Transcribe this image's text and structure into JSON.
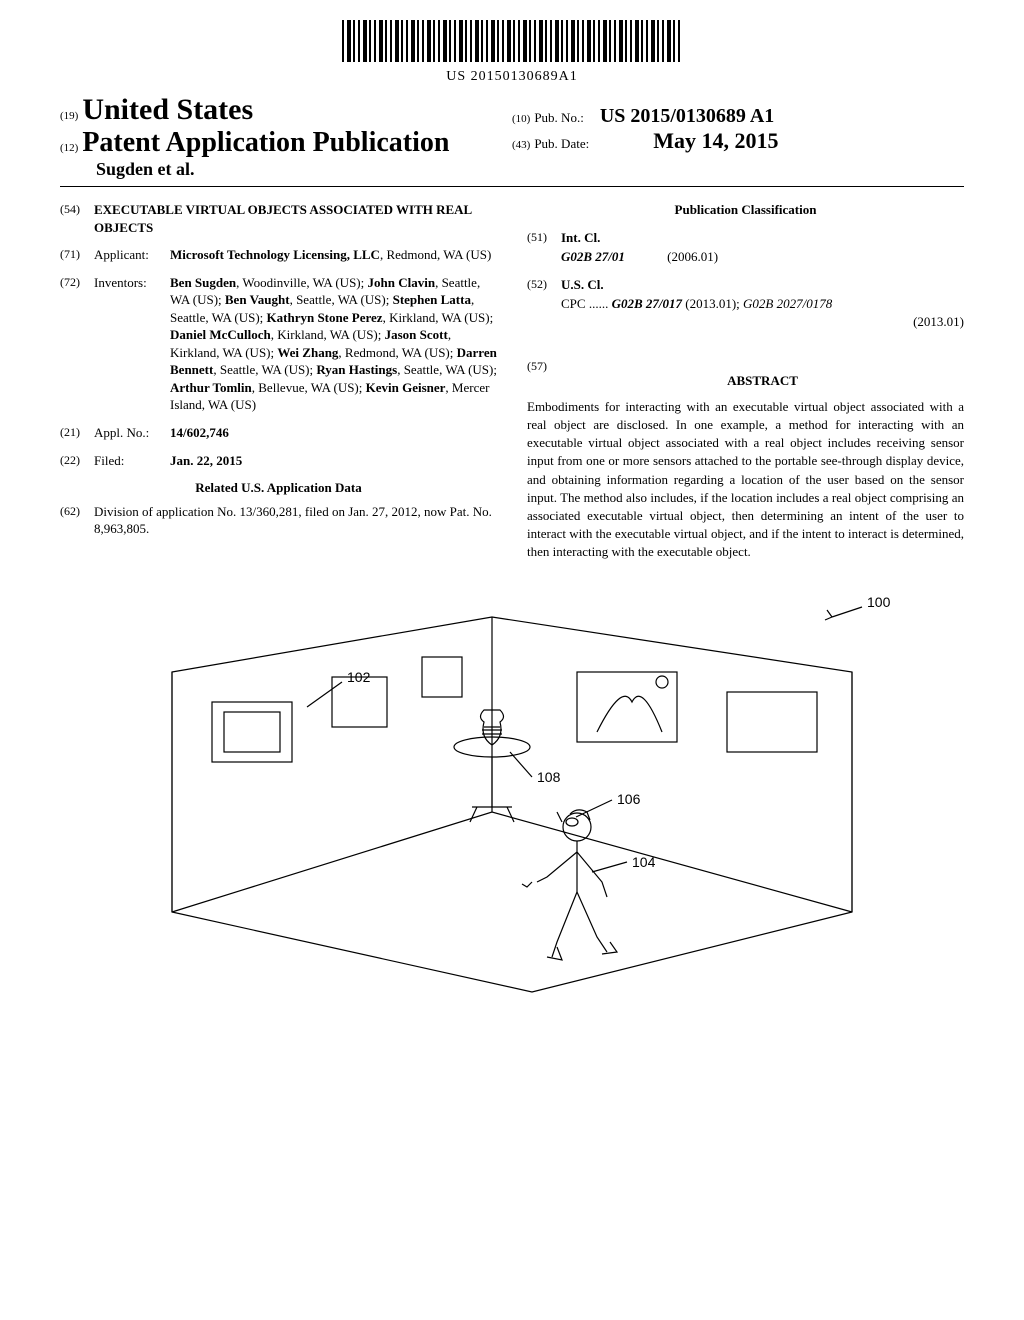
{
  "barcode_number": "US 20150130689A1",
  "header": {
    "code19": "(19)",
    "country": "United States",
    "code12": "(12)",
    "pub_type": "Patent Application Publication",
    "authors_line": "Sugden et al.",
    "code10": "(10)",
    "pub_no_label": "Pub. No.:",
    "pub_no": "US 2015/0130689 A1",
    "code43": "(43)",
    "pub_date_label": "Pub. Date:",
    "pub_date": "May 14, 2015"
  },
  "left": {
    "f54_num": "(54)",
    "f54_title": "EXECUTABLE VIRTUAL OBJECTS ASSOCIATED WITH REAL OBJECTS",
    "f71_num": "(71)",
    "f71_label": "Applicant:",
    "f71_body_bold": "Microsoft Technology Licensing, LLC",
    "f71_body_rest": ", Redmond, WA (US)",
    "f72_num": "(72)",
    "f72_label": "Inventors:",
    "inventors": [
      {
        "name": "Ben Sugden",
        "loc": ", Woodinville, WA (US); "
      },
      {
        "name": "John Clavin",
        "loc": ", Seattle, WA (US); "
      },
      {
        "name": "Ben Vaught",
        "loc": ", Seattle, WA (US); "
      },
      {
        "name": "Stephen Latta",
        "loc": ", Seattle, WA (US); "
      },
      {
        "name": "Kathryn Stone Perez",
        "loc": ", Kirkland, WA (US); "
      },
      {
        "name": "Daniel McCulloch",
        "loc": ", Kirkland, WA (US); "
      },
      {
        "name": "Jason Scott",
        "loc": ", Kirkland, WA (US); "
      },
      {
        "name": "Wei Zhang",
        "loc": ", Redmond, WA (US); "
      },
      {
        "name": "Darren Bennett",
        "loc": ", Seattle, WA (US); "
      },
      {
        "name": "Ryan Hastings",
        "loc": ", Seattle, WA (US); "
      },
      {
        "name": "Arthur Tomlin",
        "loc": ", Bellevue, WA (US); "
      },
      {
        "name": "Kevin Geisner",
        "loc": ", Mercer Island, WA (US)"
      }
    ],
    "f21_num": "(21)",
    "f21_label": "Appl. No.:",
    "f21_value": "14/602,746",
    "f22_num": "(22)",
    "f22_label": "Filed:",
    "f22_value": "Jan. 22, 2015",
    "related_heading": "Related U.S. Application Data",
    "f62_num": "(62)",
    "f62_text": "Division of application No. 13/360,281, filed on Jan. 27, 2012, now Pat. No. 8,963,805."
  },
  "right": {
    "class_heading": "Publication Classification",
    "f51_num": "(51)",
    "f51_label": "Int. Cl.",
    "f51_code": "G02B 27/01",
    "f51_year": "(2006.01)",
    "f52_num": "(52)",
    "f52_label": "U.S. Cl.",
    "f52_cpc": "CPC ......",
    "f52_code1": "G02B 27/017",
    "f52_year1": "(2013.01);",
    "f52_code2": "G02B 2027/0178",
    "f52_year2": "(2013.01)",
    "f57_num": "(57)",
    "abstract_heading": "ABSTRACT",
    "abstract_text": "Embodiments for interacting with an executable virtual object associated with a real object are disclosed. In one example, a method for interacting with an executable virtual object associated with a real object includes receiving sensor input from one or more sensors attached to the portable see-through display device, and obtaining information regarding a location of the user based on the sensor input. The method also includes, if the location includes a real object comprising an associated executable virtual object, then determining an intent of the user to interact with the executable virtual object, and if the intent to interact is determined, then interacting with the executable object."
  },
  "figure": {
    "ref_100": "100",
    "ref_102": "102",
    "ref_104": "104",
    "ref_106": "106",
    "ref_108": "108"
  }
}
